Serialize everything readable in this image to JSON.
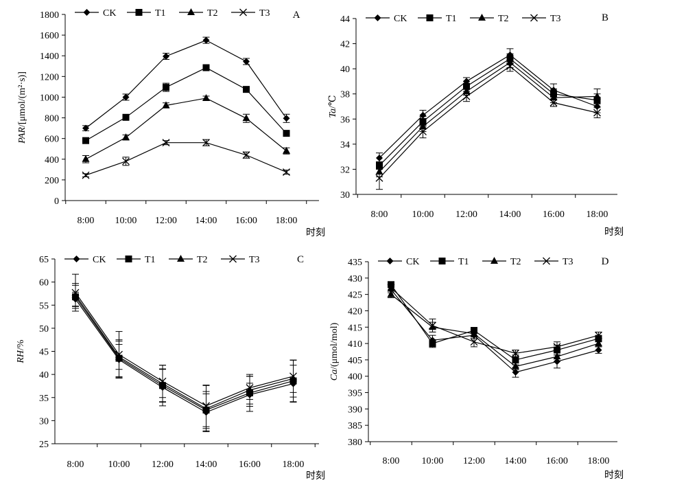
{
  "chart_data": [
    {
      "panel": "A",
      "type": "line",
      "ylabel_italic": "PAR",
      "ylabel_rest": "/[μmol/(m²·s)]",
      "xlabel": "时刻",
      "ylim": [
        0,
        1800
      ],
      "yticks": [
        0,
        200,
        400,
        600,
        800,
        1000,
        1200,
        1400,
        1600,
        1800
      ],
      "categories": [
        "8:00",
        "10:00",
        "12:00",
        "14:00",
        "16:00",
        "18:00"
      ],
      "legend_position": "top-left",
      "series": [
        {
          "name": "CK",
          "marker": "diamond",
          "values": [
            700,
            1000,
            1395,
            1550,
            1345,
            795
          ],
          "errors": [
            25,
            30,
            30,
            30,
            30,
            40
          ]
        },
        {
          "name": "T1",
          "marker": "square",
          "values": [
            580,
            805,
            1095,
            1285,
            1075,
            650
          ],
          "errors": [
            20,
            25,
            40,
            20,
            25,
            25
          ]
        },
        {
          "name": "T2",
          "marker": "triangle",
          "values": [
            400,
            610,
            920,
            990,
            795,
            480
          ],
          "errors": [
            35,
            25,
            25,
            20,
            40,
            30
          ]
        },
        {
          "name": "T3",
          "marker": "cross",
          "values": [
            245,
            380,
            560,
            560,
            440,
            275
          ],
          "errors": [
            15,
            40,
            20,
            30,
            30,
            20
          ]
        }
      ]
    },
    {
      "panel": "B",
      "type": "line",
      "ylabel_italic": "Ta",
      "ylabel_rest": "/℃",
      "xlabel": "时刻",
      "ylim": [
        30,
        44
      ],
      "yticks": [
        30,
        32,
        34,
        36,
        38,
        40,
        42,
        44
      ],
      "categories": [
        "8:00",
        "10:00",
        "12:00",
        "14:00",
        "16:00",
        "18:00"
      ],
      "legend_position": "top-left",
      "series": [
        {
          "name": "CK",
          "marker": "diamond",
          "values": [
            32.9,
            36.3,
            39.0,
            41.1,
            38.3,
            37.0
          ],
          "errors": [
            0.4,
            0.4,
            0.3,
            0.5,
            0.5,
            0.5
          ]
        },
        {
          "name": "T1",
          "marker": "square",
          "values": [
            32.3,
            35.8,
            38.6,
            40.8,
            38.0,
            37.5
          ],
          "errors": [
            0.3,
            0.4,
            0.4,
            0.4,
            0.4,
            0.5
          ]
        },
        {
          "name": "T2",
          "marker": "triangle",
          "values": [
            31.8,
            35.4,
            38.2,
            40.5,
            37.7,
            37.8
          ],
          "errors": [
            0.4,
            0.4,
            0.3,
            0.4,
            0.4,
            0.6
          ]
        },
        {
          "name": "T3",
          "marker": "cross",
          "values": [
            31.3,
            35.0,
            37.8,
            40.2,
            37.3,
            36.5
          ],
          "errors": [
            0.9,
            0.5,
            0.4,
            0.4,
            0.3,
            0.4
          ]
        }
      ]
    },
    {
      "panel": "C",
      "type": "line",
      "ylabel_italic": "RH",
      "ylabel_rest": "/%",
      "xlabel": "时刻",
      "ylim": [
        25,
        65
      ],
      "yticks": [
        25,
        30,
        35,
        40,
        45,
        50,
        55,
        60,
        65
      ],
      "categories": [
        "8:00",
        "10:00",
        "12:00",
        "14:00",
        "16:00",
        "18:00"
      ],
      "legend_position": "top-left",
      "series": [
        {
          "name": "CK",
          "marker": "diamond",
          "values": [
            56.3,
            43.2,
            37.2,
            31.8,
            35.6,
            38.0
          ],
          "errors": [
            1.5,
            4.0,
            4.0,
            4.0,
            2.5,
            4.0
          ]
        },
        {
          "name": "T1",
          "marker": "square",
          "values": [
            56.8,
            43.5,
            37.6,
            32.3,
            36.0,
            38.6
          ],
          "errors": [
            2.5,
            4.0,
            3.5,
            4.0,
            4.0,
            4.5
          ]
        },
        {
          "name": "T2",
          "marker": "triangle",
          "values": [
            57.2,
            43.8,
            38.0,
            32.6,
            36.6,
            39.1
          ],
          "errors": [
            2.5,
            2.7,
            4.0,
            5.0,
            3.0,
            4.0
          ]
        },
        {
          "name": "T3",
          "marker": "cross",
          "values": [
            57.7,
            44.3,
            38.5,
            33.2,
            37.1,
            39.6
          ],
          "errors": [
            4.0,
            5.0,
            3.5,
            4.5,
            2.5,
            3.5
          ]
        }
      ]
    },
    {
      "panel": "D",
      "type": "line",
      "ylabel_italic": "Ca",
      "ylabel_rest": "/(μmol/mol)",
      "xlabel": "时刻",
      "ylim": [
        380,
        435
      ],
      "yticks": [
        380,
        385,
        390,
        395,
        400,
        405,
        410,
        415,
        420,
        425,
        430,
        435
      ],
      "categories": [
        "8:00",
        "10:00",
        "12:00",
        "14:00",
        "16:00",
        "18:00"
      ],
      "legend_position": "top-left",
      "series": [
        {
          "name": "CK",
          "marker": "diamond",
          "values": [
            426.5,
            411.0,
            412.5,
            401.2,
            404.5,
            408.0
          ],
          "errors": [
            1.0,
            1.5,
            1.0,
            1.5,
            2.0,
            1.0
          ]
        },
        {
          "name": "T1",
          "marker": "square",
          "values": [
            428.0,
            410.0,
            414.0,
            405.0,
            408.0,
            411.5
          ],
          "errors": [
            0.8,
            1.2,
            0.8,
            1.5,
            1.5,
            1.0
          ]
        },
        {
          "name": "T2",
          "marker": "triangle",
          "values": [
            425.0,
            415.0,
            413.0,
            403.0,
            406.0,
            410.0
          ],
          "errors": [
            1.0,
            1.5,
            1.0,
            1.0,
            1.5,
            1.0
          ]
        },
        {
          "name": "T3",
          "marker": "cross",
          "values": [
            427.0,
            415.5,
            410.5,
            407.0,
            409.0,
            412.5
          ],
          "errors": [
            1.0,
            2.0,
            1.5,
            1.0,
            1.5,
            1.0
          ]
        }
      ]
    }
  ]
}
